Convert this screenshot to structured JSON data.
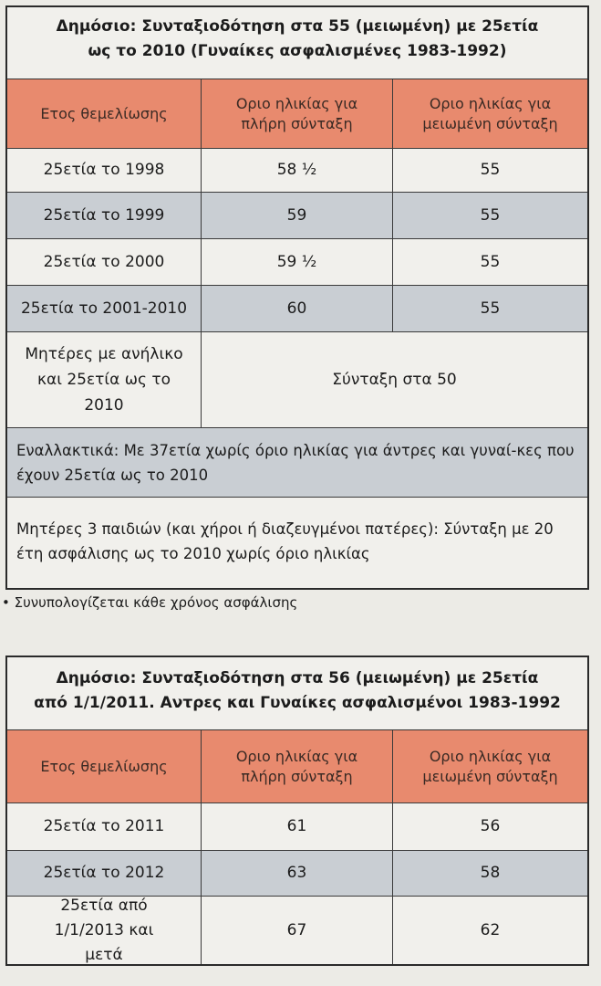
{
  "table1": {
    "title_line1": "Δημόσιο: Συνταξιοδότηση στα 55 (μειωμένη) με 25ετία",
    "title_line2": "ως το 2010 (Γυναίκες ασφαλισμένες 1983-1992)",
    "headers": [
      "Ετος θεμελίωσης",
      "Οριο ηλικίας για πλήρη σύνταξη",
      "Οριο ηλικίας για μειωμένη σύνταξη"
    ],
    "rows": [
      [
        "25ετία το 1998",
        "58 ½",
        "55"
      ],
      [
        "25ετία το 1999",
        "59",
        "55"
      ],
      [
        "25ετία το 2000",
        "59 ½",
        "55"
      ],
      [
        "25ετία το 2001-2010",
        "60",
        "55"
      ]
    ],
    "mothers_label": "Μητέρες με ανήλικο και 25ετία ως το 2010",
    "mothers_value": "Σύνταξη στα 50",
    "alt_note": "Εναλλακτικά: Με 37ετία χωρίς όριο ηλικίας για άντρες και γυναί-κες που έχουν 25ετία ως το 2010",
    "three_children_note": "Μητέρες 3 παιδιών (και χήροι ή διαζευγμένοι πατέρες): Σύνταξη με 20 έτη ασφάλισης ως το 2010 χωρίς όριο ηλικίας"
  },
  "footnote": "• Συνυπολογίζεται κάθε χρόνος ασφάλισης",
  "table2": {
    "title_line1": "Δημόσιο: Συνταξιοδότηση στα 56 (μειωμένη) με 25ετία",
    "title_line2": "από 1/1/2011. Αντρες και Γυναίκες ασφαλισμένοι 1983-1992",
    "headers": [
      "Ετος θεμελίωσης",
      "Οριο ηλικίας για πλήρη σύνταξη",
      "Οριο ηλικίας για μειωμένη σύνταξη"
    ],
    "rows": [
      [
        "25ετία το 2011",
        "61",
        "56"
      ],
      [
        "25ετία το 2012",
        "63",
        "58"
      ],
      [
        "25ετία από 1/1/2013 και μετά",
        "67",
        "62"
      ]
    ]
  },
  "colors": {
    "header_bg": "#e88a6e",
    "alt_row_bg": "#c9ced3",
    "row_bg": "#f1f0ec"
  }
}
